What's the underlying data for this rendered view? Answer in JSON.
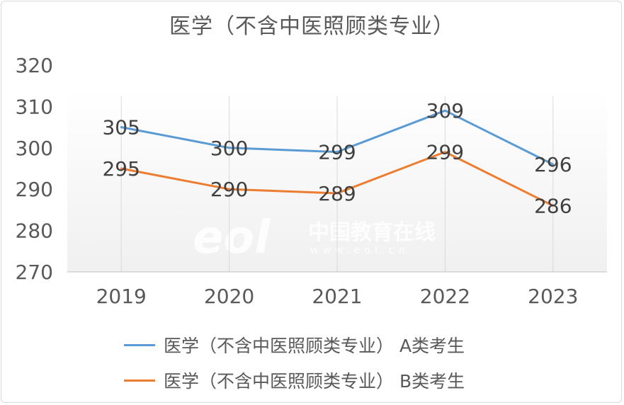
{
  "chart_data": {
    "type": "line",
    "title": "医学（不含中医照顾类专业）",
    "categories": [
      "2019",
      "2020",
      "2021",
      "2022",
      "2023"
    ],
    "y_ticks": [
      "270",
      "280",
      "290",
      "300",
      "310",
      "320"
    ],
    "ylim": [
      270,
      320
    ],
    "series": [
      {
        "name": "医学（不含中医照顾类专业） A类考生",
        "color": "#5b9bd5",
        "values": [
          305,
          300,
          299,
          309,
          296
        ],
        "labels": [
          "305",
          "300",
          "299",
          "309",
          "296"
        ]
      },
      {
        "name": "医学（不含中医照顾类专业） B类考生",
        "color": "#ed7d31",
        "values": [
          295,
          290,
          289,
          299,
          286
        ],
        "labels": [
          "295",
          "290",
          "289",
          "299",
          "286"
        ]
      }
    ],
    "legend": "bottom",
    "watermark": {
      "brand": "eol",
      "cn": "中国教育在线",
      "url": "www.eol.cn"
    }
  }
}
